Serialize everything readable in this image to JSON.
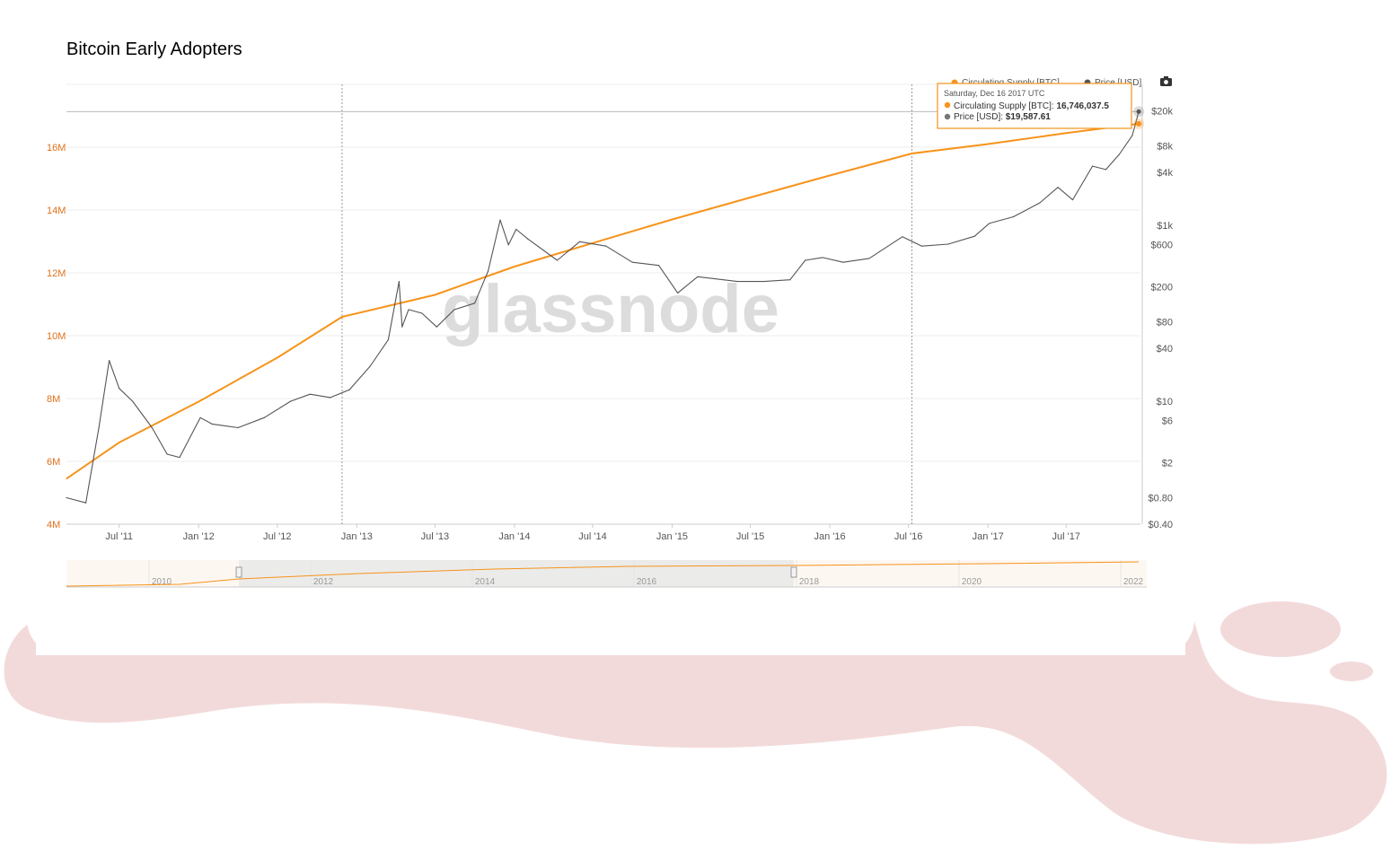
{
  "page": {
    "title": "Bitcoin Early Adopters"
  },
  "colors": {
    "supply": "#f7931a",
    "price": "#555555",
    "background_blob": "#f3dada",
    "left_axis": "#e0701a"
  },
  "watermark": "glassnode",
  "legend": {
    "supply": "Circulating Supply [BTC]",
    "price": "Price [USD]"
  },
  "icons": {
    "camera": "camera-icon"
  },
  "tooltip": {
    "date": "Saturday, Dec 16 2017 UTC",
    "supply_label": "Circulating Supply [BTC]: ",
    "supply_value": "16,746,037.5",
    "price_label": "Price [USD]: ",
    "price_value": "$19,587.61"
  },
  "navigator": {
    "labels": [
      "2010",
      "2012",
      "2014",
      "2016",
      "2018",
      "2020",
      "2022"
    ]
  },
  "chart_data": {
    "type": "line",
    "title": "",
    "x_tick_labels": [
      "Jul '11",
      "Jan '12",
      "Jul '12",
      "Jan '13",
      "Jul '13",
      "Jan '14",
      "Jul '14",
      "Jan '15",
      "Jul '15",
      "Jan '16",
      "Jul '16",
      "Jan '17",
      "Jul '17"
    ],
    "x_tick_dates": [
      "2011-07-01",
      "2012-01-01",
      "2012-07-01",
      "2013-01-01",
      "2013-07-01",
      "2014-01-01",
      "2014-07-01",
      "2015-01-01",
      "2015-07-01",
      "2016-01-01",
      "2016-07-01",
      "2017-01-01",
      "2017-07-01"
    ],
    "x_range": [
      "2011-03-01",
      "2017-12-20"
    ],
    "left_axis": {
      "label": "",
      "tick_values": [
        4000000,
        6000000,
        8000000,
        10000000,
        12000000,
        14000000,
        16000000
      ],
      "tick_labels": [
        "4M",
        "6M",
        "8M",
        "10M",
        "12M",
        "14M",
        "16M"
      ],
      "range": [
        4000000,
        18000000
      ]
    },
    "right_axis": {
      "label": "",
      "scale": "log",
      "tick_values": [
        0.4,
        0.8,
        2,
        6,
        10,
        40,
        80,
        200,
        600,
        1000,
        4000,
        8000,
        20000
      ],
      "tick_labels": [
        "$0.40",
        "$0.80",
        "$2",
        "$6",
        "$10",
        "$40",
        "$80",
        "$200",
        "$600",
        "$1k",
        "$4k",
        "$8k",
        "$20k"
      ],
      "range": [
        0.4,
        40000
      ]
    },
    "grid": true,
    "legend_position": "top-right",
    "series": [
      {
        "name": "Circulating Supply [BTC]",
        "axis": "left",
        "x": [
          "2011-03-01",
          "2011-07-01",
          "2012-01-01",
          "2012-07-01",
          "2012-11-28",
          "2013-07-01",
          "2014-01-01",
          "2014-07-01",
          "2015-01-01",
          "2015-07-01",
          "2016-01-01",
          "2016-07-09",
          "2017-01-01",
          "2017-07-01",
          "2017-12-16"
        ],
        "values": [
          5450000,
          6600000,
          7900000,
          9300000,
          10600000,
          11300000,
          12200000,
          12950000,
          13700000,
          14400000,
          15100000,
          15800000,
          16100000,
          16450000,
          16746037.5
        ]
      },
      {
        "name": "Price [USD]",
        "axis": "right",
        "x": [
          "2011-03-01",
          "2011-04-15",
          "2011-05-15",
          "2011-06-08",
          "2011-07-01",
          "2011-08-01",
          "2011-09-15",
          "2011-10-20",
          "2011-11-18",
          "2012-01-05",
          "2012-02-01",
          "2012-04-01",
          "2012-06-01",
          "2012-08-01",
          "2012-09-15",
          "2012-11-01",
          "2012-12-15",
          "2013-02-01",
          "2013-03-15",
          "2013-04-09",
          "2013-04-16",
          "2013-05-01",
          "2013-06-01",
          "2013-07-05",
          "2013-08-15",
          "2013-10-01",
          "2013-11-01",
          "2013-11-29",
          "2013-12-18",
          "2014-01-05",
          "2014-02-01",
          "2014-04-10",
          "2014-06-01",
          "2014-08-01",
          "2014-10-01",
          "2014-12-01",
          "2015-01-14",
          "2015-03-01",
          "2015-06-01",
          "2015-08-01",
          "2015-10-01",
          "2015-11-05",
          "2015-12-15",
          "2016-02-01",
          "2016-04-01",
          "2016-06-17",
          "2016-08-01",
          "2016-10-01",
          "2016-12-01",
          "2017-01-04",
          "2017-03-01",
          "2017-05-01",
          "2017-06-12",
          "2017-07-16",
          "2017-08-31",
          "2017-10-01",
          "2017-11-01",
          "2017-12-01",
          "2017-12-16"
        ],
        "values": [
          0.8,
          0.7,
          5,
          29,
          14,
          10,
          5,
          2.5,
          2.3,
          6.5,
          5.5,
          5,
          6.5,
          10,
          12,
          11,
          13.5,
          25,
          50,
          230,
          70,
          110,
          100,
          70,
          110,
          130,
          300,
          1150,
          600,
          900,
          700,
          400,
          650,
          580,
          380,
          350,
          170,
          260,
          230,
          230,
          240,
          400,
          430,
          380,
          420,
          740,
          580,
          610,
          750,
          1050,
          1250,
          1800,
          2700,
          1950,
          4700,
          4300,
          6400,
          10500,
          19587.61
        ]
      }
    ]
  }
}
